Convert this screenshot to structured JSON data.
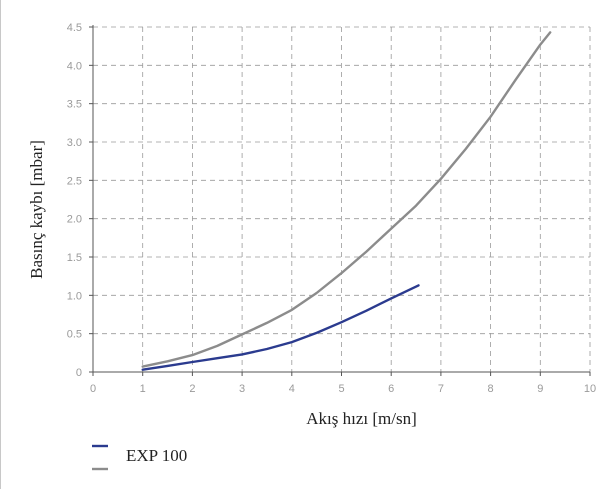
{
  "chart_data": {
    "type": "line",
    "xlabel": "Akış hızı [m/sn]",
    "ylabel": "Basınç kaybı [mbar]",
    "xlim": [
      0,
      10
    ],
    "ylim": [
      0,
      4.5
    ],
    "x_ticks": [
      "0",
      "1",
      "2",
      "3",
      "4",
      "5",
      "6",
      "7",
      "8",
      "9",
      "10"
    ],
    "y_ticks": [
      "0",
      "0.5",
      "1.0",
      "1.5",
      "2.0",
      "2.5",
      "3.0",
      "3.5",
      "4.0",
      "4.5"
    ],
    "grid": true,
    "legend_position": "bottom-left",
    "series": [
      {
        "name": "EXP 100",
        "color": "#2b3b8f",
        "points": [
          [
            1.0,
            0.03
          ],
          [
            1.5,
            0.08
          ],
          [
            2.0,
            0.13
          ],
          [
            2.5,
            0.18
          ],
          [
            3.0,
            0.23
          ],
          [
            3.5,
            0.3
          ],
          [
            4.0,
            0.39
          ],
          [
            4.5,
            0.51
          ],
          [
            5.0,
            0.65
          ],
          [
            5.5,
            0.8
          ],
          [
            6.0,
            0.96
          ],
          [
            6.55,
            1.13
          ]
        ]
      },
      {
        "name": "",
        "color": "#8c8c8c",
        "points": [
          [
            1.0,
            0.07
          ],
          [
            1.5,
            0.14
          ],
          [
            2.0,
            0.22
          ],
          [
            2.5,
            0.34
          ],
          [
            3.0,
            0.49
          ],
          [
            3.5,
            0.64
          ],
          [
            4.0,
            0.81
          ],
          [
            4.5,
            1.03
          ],
          [
            5.0,
            1.29
          ],
          [
            5.5,
            1.57
          ],
          [
            6.0,
            1.87
          ],
          [
            6.5,
            2.17
          ],
          [
            7.0,
            2.52
          ],
          [
            7.5,
            2.91
          ],
          [
            8.0,
            3.33
          ],
          [
            8.5,
            3.81
          ],
          [
            9.0,
            4.27
          ],
          [
            9.2,
            4.43
          ]
        ]
      }
    ]
  }
}
